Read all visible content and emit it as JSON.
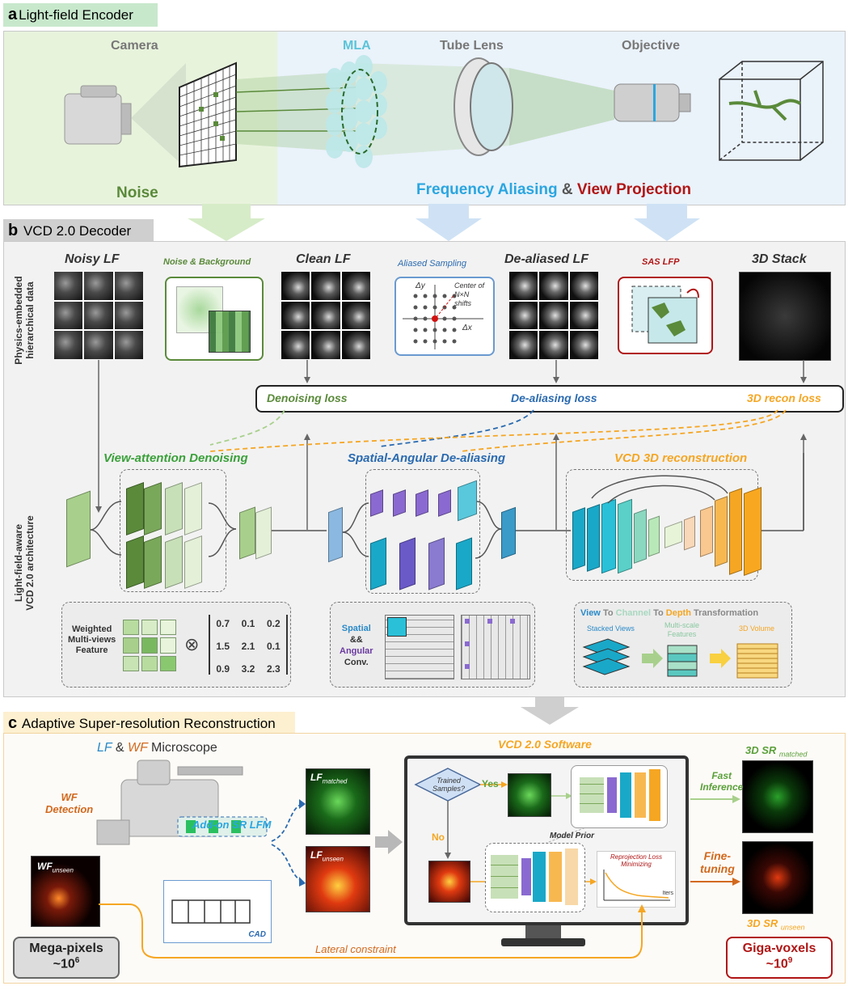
{
  "colors": {
    "green": "#5a8a3a",
    "blue": "#2aa6e0",
    "red": "#b01616",
    "orange": "#f5a623",
    "purple": "#6a3aa0",
    "darkorange": "#d2691e"
  },
  "section_a": {
    "tag_letter": "a",
    "tag_title": "Light-field Encoder",
    "camera": "Camera",
    "mla": "MLA",
    "tube_lens": "Tube Lens",
    "objective": "Objective",
    "noise": "Noise",
    "freq_aliasing": "Frequency Aliasing",
    "amp": "&",
    "view_projection": "View Projection"
  },
  "section_b": {
    "tag_letter": "b",
    "tag_title": "VCD 2.0 Decoder",
    "side_label_top_1": "Physics-embedded",
    "side_label_top_2": "hierarchical data",
    "side_label_bot_1": "Light-field-aware",
    "side_label_bot_2": "VCD 2.0 architecture",
    "noisy_lf": "Noisy LF",
    "noise_bg": "Noise & Background",
    "clean_lf": "Clean LF",
    "aliased_sampling": "Aliased Sampling",
    "dealiased_lf": "De-aliased LF",
    "sas_lfp": "SAS LFP",
    "stack_3d": "3D Stack",
    "delta_y": "Δy",
    "delta_x": "Δx",
    "center_note_1": "Center of",
    "center_note_2": "N×N",
    "center_note_3": "shifts",
    "loss_denoise": "Denoising loss",
    "loss_dealias": "De-aliasing loss",
    "loss_recon": "3D recon loss",
    "mod_denoise": "View-attention Denoising",
    "mod_dealias": "Spatial-Angular De-aliasing",
    "mod_recon": "VCD 3D reconstruction",
    "weighted_1": "Weighted",
    "weighted_2": "Multi-views",
    "weighted_3": "Feature",
    "otimes": "⊗",
    "matrix": [
      [
        "0.7",
        "0.1",
        "0.2"
      ],
      [
        "1.5",
        "2.1",
        "0.1"
      ],
      [
        "0.9",
        "3.2",
        "2.3"
      ]
    ],
    "spatial": "Spatial",
    "ampamp": "&&",
    "angular": "Angular",
    "conv": "Conv.",
    "vtcd_view": "View",
    "vtcd_to1": "To",
    "vtcd_channel": "Channel",
    "vtcd_to2": "To",
    "vtcd_depth": "Depth",
    "vtcd_transform": "Transformation",
    "stacked_views": "Stacked Views",
    "multi_scale_1": "Multi-scale",
    "multi_scale_2": "Features",
    "volume_3d": "3D Volume"
  },
  "section_c": {
    "tag_letter": "c",
    "tag_title": "Adaptive Super-resolution Reconstruction",
    "lf_label": "LF",
    "amp": "&",
    "wf_label": "WF",
    "microscope": "Microscope",
    "wf_detection_1": "WF",
    "wf_detection_2": "Detection",
    "addon": "Add-on SR LFM",
    "cad": "CAD",
    "lf_matched": "LF",
    "lf_matched_sub": "matched",
    "lf_unseen": "LF",
    "lf_unseen_sub": "unseen",
    "wf_unseen": "WF",
    "wf_unseen_sub": "unseen",
    "software": "VCD 2.0 Software",
    "trained_1": "Trained",
    "trained_2": "Samples?",
    "yes": "Yes",
    "no": "No",
    "model_prior": "Model Prior",
    "reproj_1": "Reprojection Loss",
    "reproj_2": "Minimizing",
    "iters": "Iters",
    "fast_1": "Fast",
    "fast_2": "Inference",
    "fine_1": "Fine-",
    "fine_2": "tuning",
    "sr_matched": "3D SR",
    "sr_matched_sub": "matched",
    "sr_unseen": "3D SR",
    "sr_unseen_sub": "unseen",
    "lateral": "Lateral constraint",
    "mega": "Mega-pixels",
    "mega_val": "~10",
    "mega_exp": "6",
    "giga": "Giga-voxels",
    "giga_val": "~10",
    "giga_exp": "9"
  }
}
